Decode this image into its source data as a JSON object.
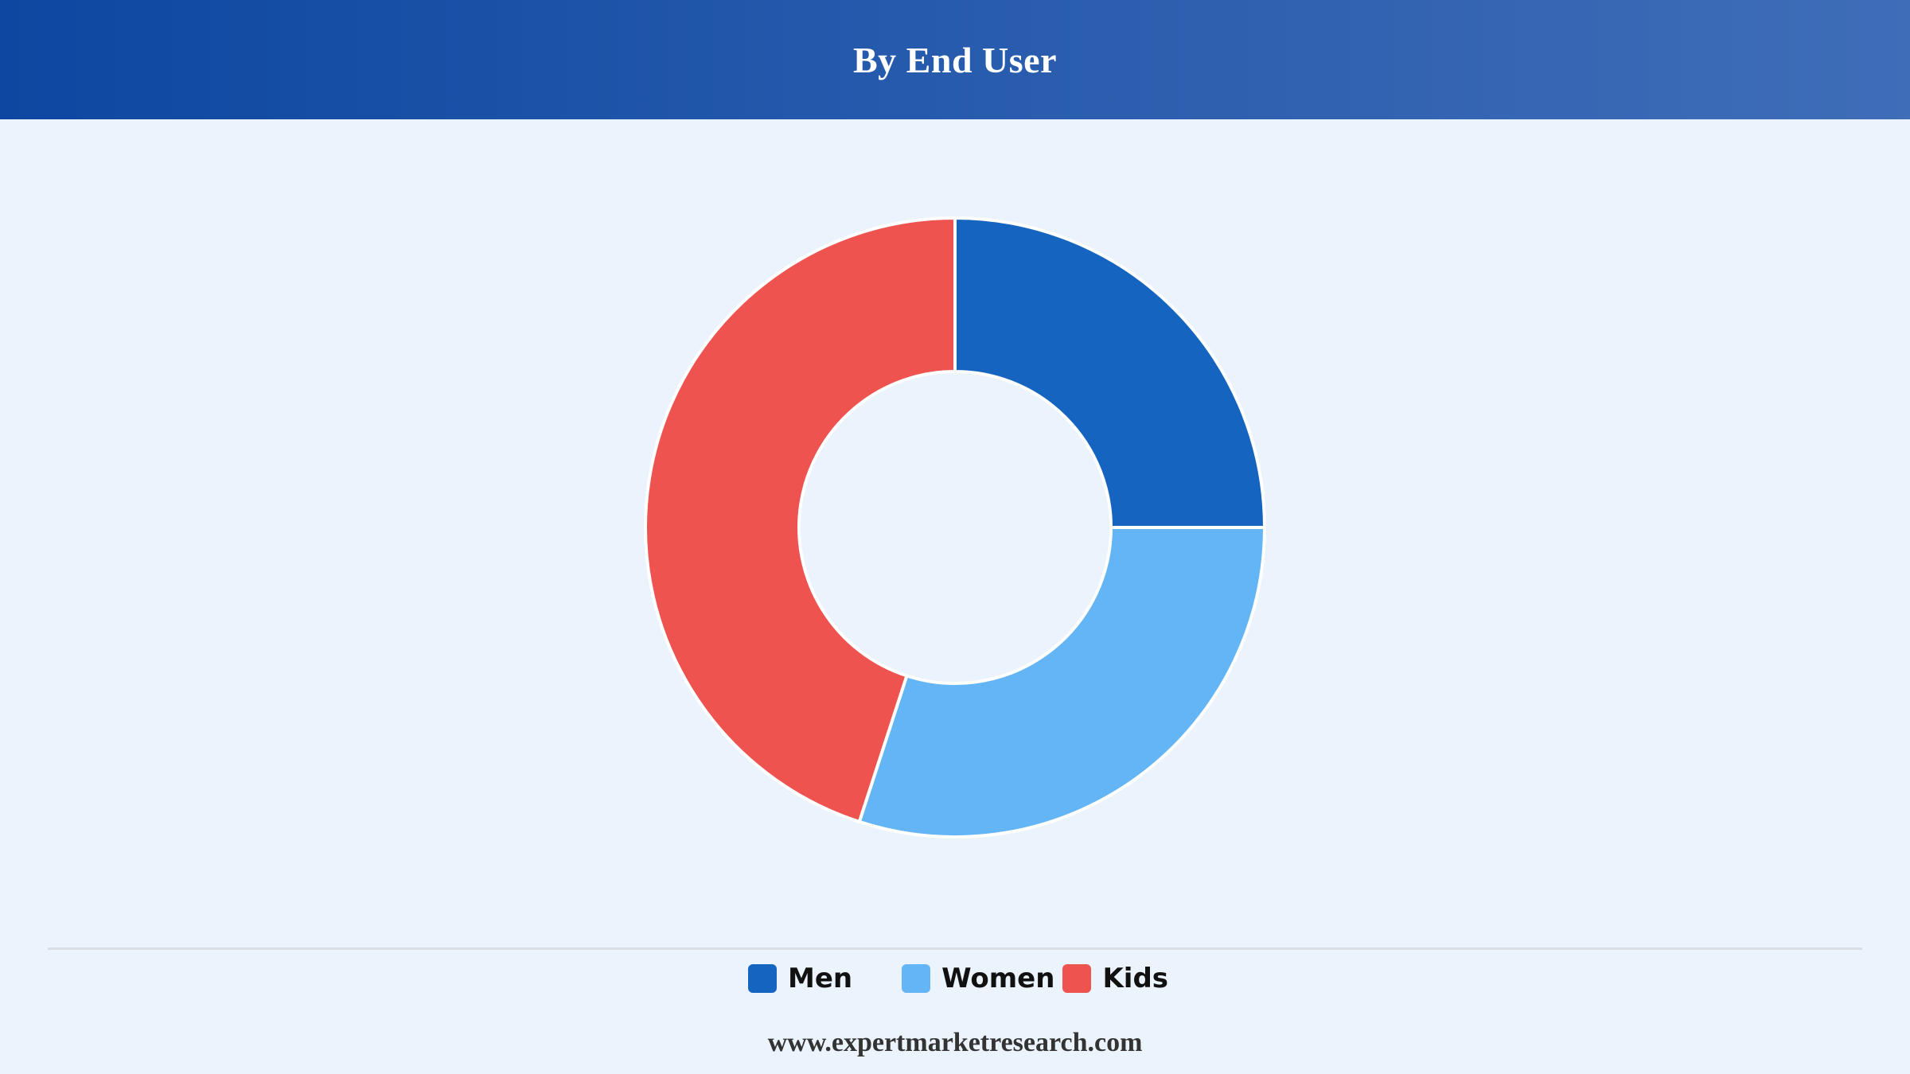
{
  "header": {
    "title": "By End User"
  },
  "chart_data": {
    "type": "pie",
    "variant": "donut",
    "title": "By End User",
    "categories": [
      "Men",
      "Women",
      "Kids"
    ],
    "values": [
      25,
      30,
      45
    ],
    "unit": "%",
    "colors": [
      "#1565C0",
      "#64B5F6",
      "#EF5350"
    ],
    "legend_position": "bottom",
    "start_angle": "top",
    "direction": "clockwise"
  },
  "legend": {
    "items": [
      {
        "label": "Men",
        "color": "#1565C0"
      },
      {
        "label": "Women",
        "color": "#64B5F6"
      },
      {
        "label": "Kids",
        "color": "#EF5350"
      }
    ]
  },
  "footer": {
    "source": "www.expertmarketresearch.com"
  },
  "colors": {
    "background": "#EBF3FC",
    "header_start": "#0D47A1",
    "header_end": "#3F6DB8",
    "slice_stroke": "#FFFFFF"
  }
}
